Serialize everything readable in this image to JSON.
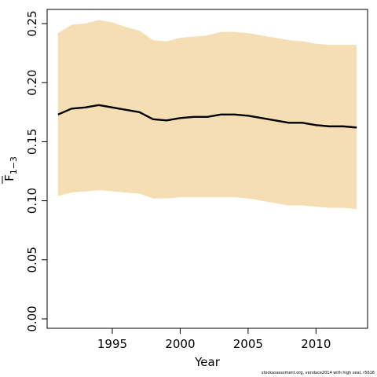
{
  "chart_data": {
    "type": "area",
    "xlabel": "Year",
    "ylabel": {
      "main": "F",
      "sub": "1−3"
    },
    "xlim": [
      1990.2,
      2013.8
    ],
    "ylim": [
      -0.008,
      0.262
    ],
    "xticks": [
      1995,
      2000,
      2005,
      2010
    ],
    "xtick_labels": [
      "1995",
      "2000",
      "2005",
      "2010"
    ],
    "yticks": [
      0.0,
      0.05,
      0.1,
      0.15,
      0.2,
      0.25
    ],
    "ytick_labels": [
      "0.00",
      "0.05",
      "0.10",
      "0.15",
      "0.20",
      "0.25"
    ],
    "colors": {
      "band": "#f5deb3",
      "line": "#000000"
    },
    "x": [
      1991,
      1992,
      1993,
      1994,
      1995,
      1996,
      1997,
      1998,
      1999,
      2000,
      2001,
      2002,
      2003,
      2004,
      2005,
      2006,
      2007,
      2008,
      2009,
      2010,
      2011,
      2012,
      2013
    ],
    "series": [
      {
        "values": [
          0.173,
          0.178,
          0.179,
          0.181,
          0.179,
          0.177,
          0.175,
          0.169,
          0.168,
          0.17,
          0.171,
          0.171,
          0.173,
          0.173,
          0.172,
          0.17,
          0.168,
          0.166,
          0.166,
          0.164,
          0.163,
          0.163,
          0.162
        ]
      }
    ],
    "band": {
      "lower": [
        0.104,
        0.107,
        0.108,
        0.109,
        0.108,
        0.107,
        0.106,
        0.102,
        0.102,
        0.103,
        0.103,
        0.103,
        0.103,
        0.103,
        0.102,
        0.1,
        0.098,
        0.096,
        0.096,
        0.095,
        0.094,
        0.094,
        0.093
      ],
      "upper": [
        0.242,
        0.249,
        0.25,
        0.253,
        0.251,
        0.247,
        0.244,
        0.236,
        0.235,
        0.238,
        0.239,
        0.24,
        0.243,
        0.243,
        0.242,
        0.24,
        0.238,
        0.236,
        0.235,
        0.233,
        0.232,
        0.232,
        0.232
      ]
    }
  },
  "footnote": "stockassessment.org,  vendace2014  with  high  seal,  r5616"
}
